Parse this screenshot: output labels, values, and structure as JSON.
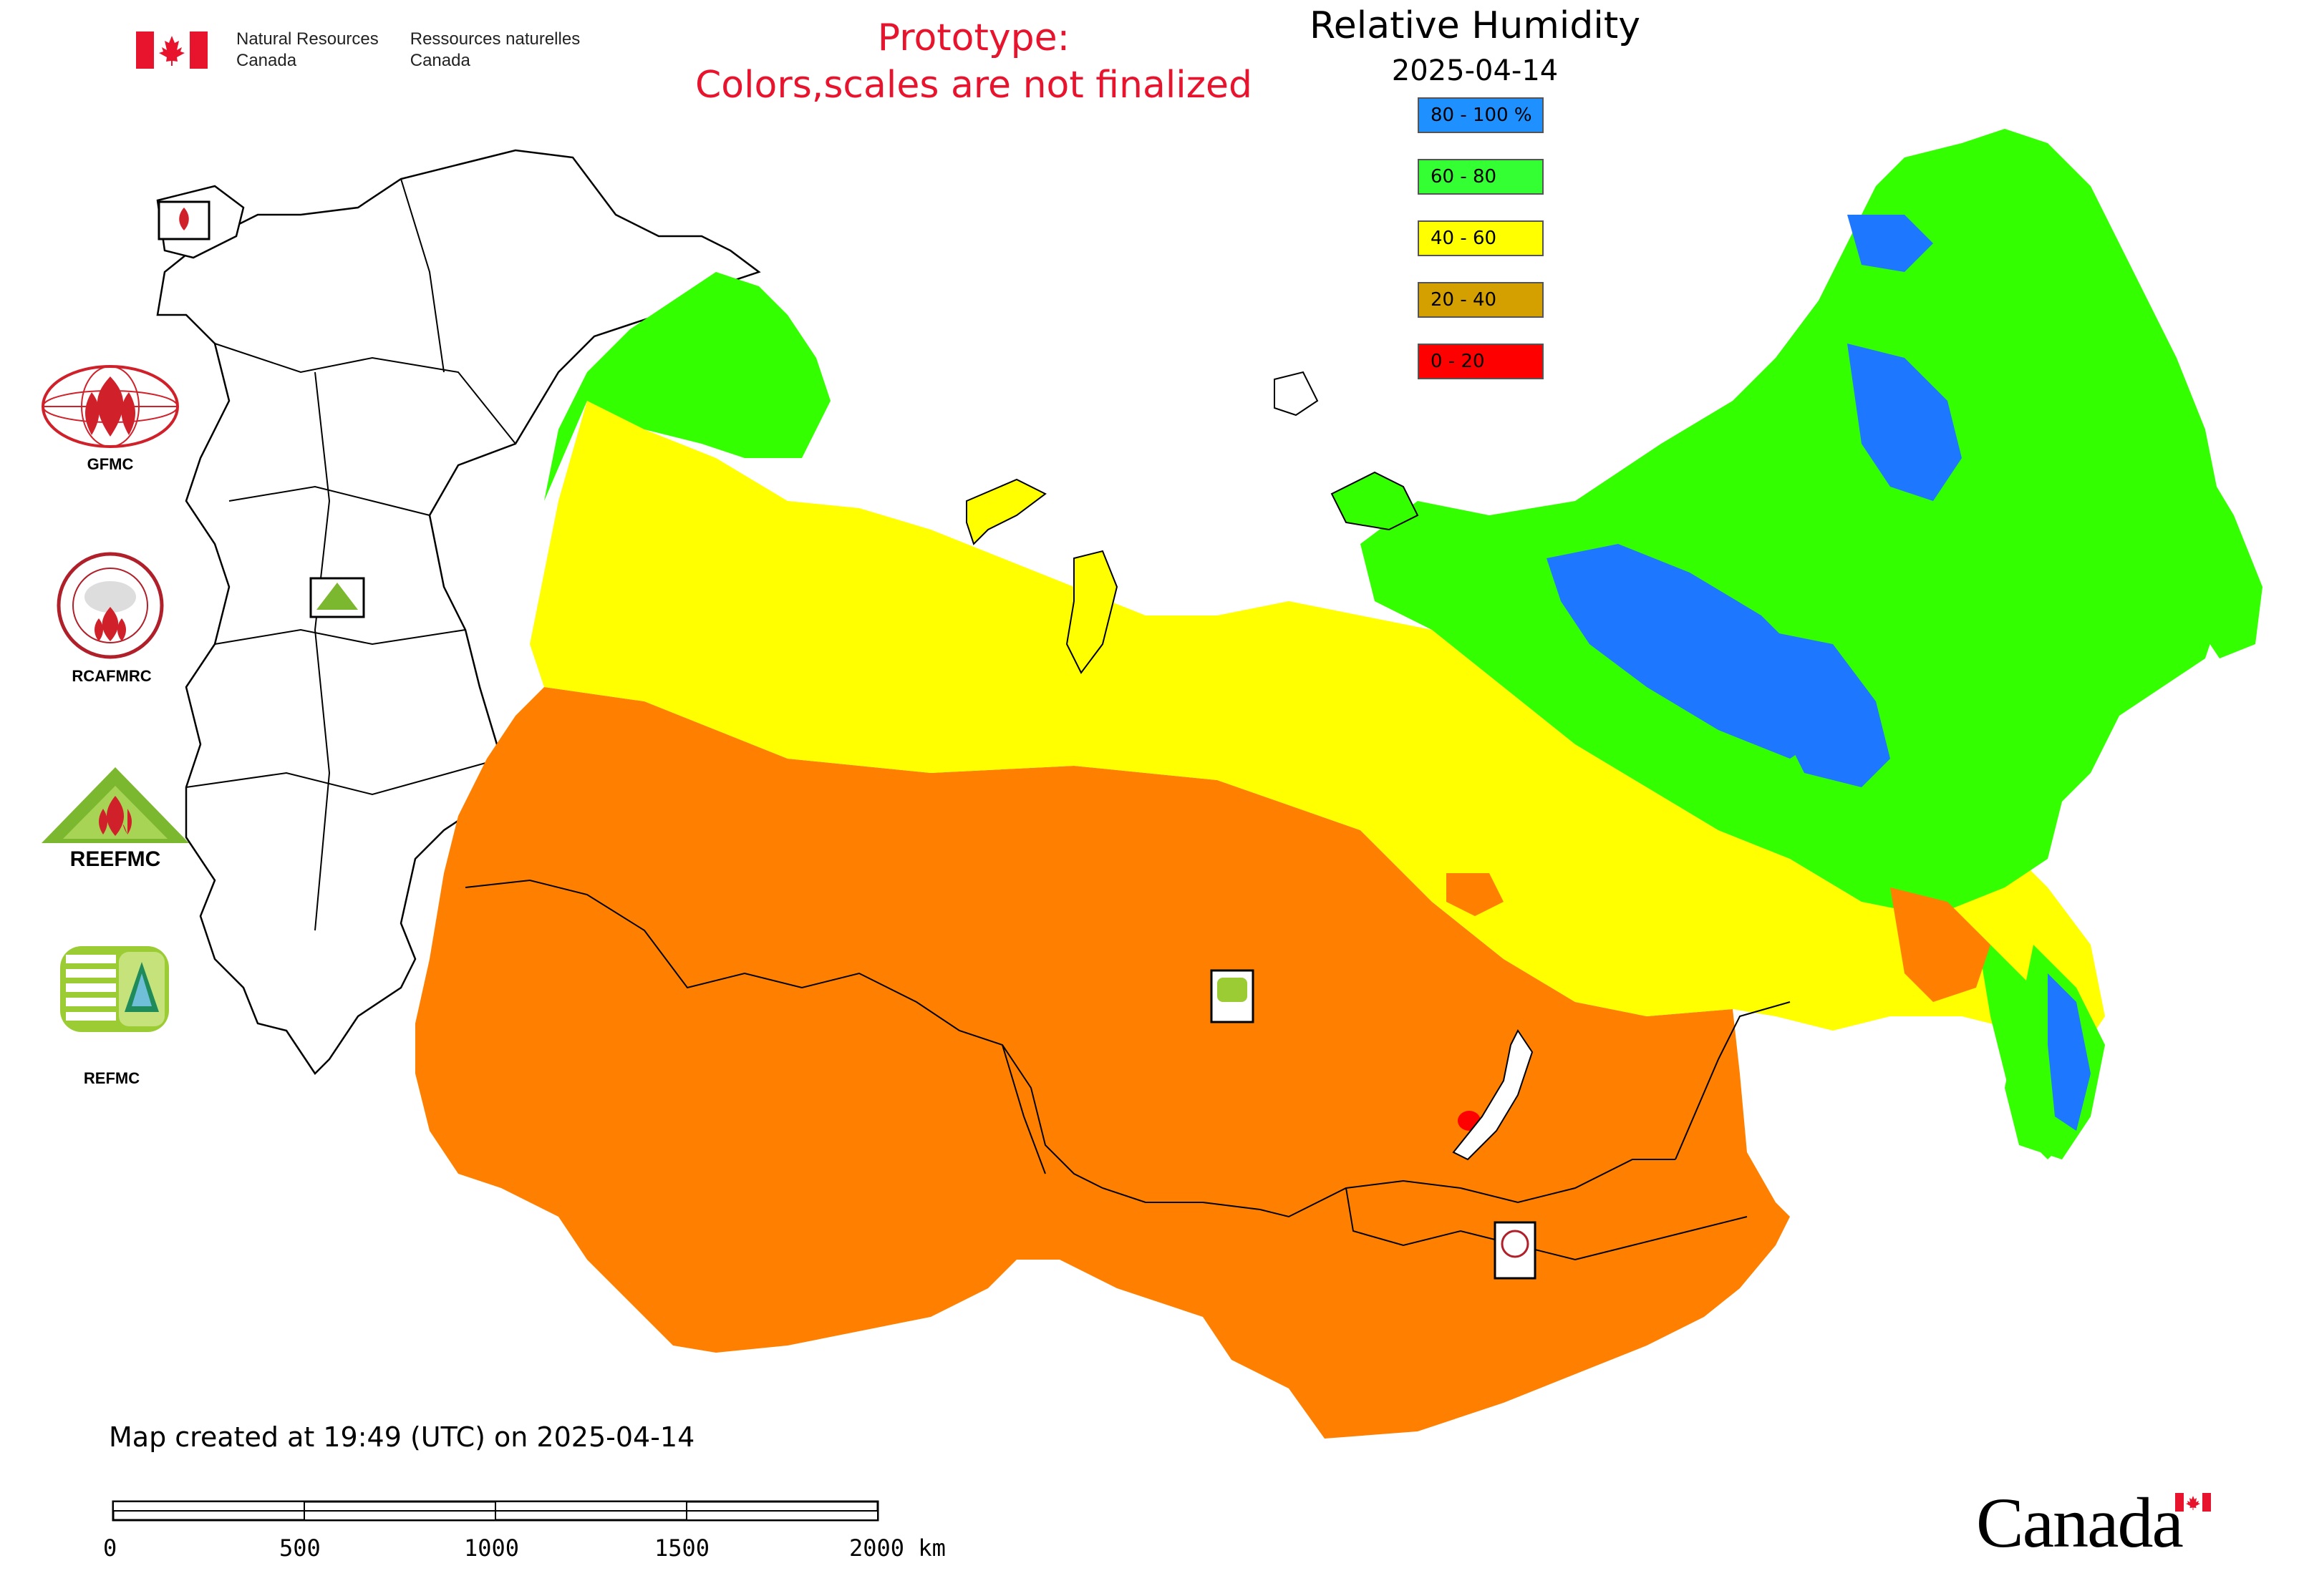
{
  "header": {
    "org_en_line1": "Natural Resources",
    "org_en_line2": "Canada",
    "org_fr_line1": "Ressources naturelles",
    "org_fr_line2": "Canada",
    "prototype_line1": "Prototype:",
    "prototype_line2": "Colors,scales are not finalized"
  },
  "legend": {
    "title": "Relative Humidity",
    "date": "2025-04-14",
    "items": [
      {
        "label": "80 - 100 %",
        "color": "#1e90ff"
      },
      {
        "label": "60 - 80",
        "color": "#33ff33"
      },
      {
        "label": "40 - 60",
        "color": "#ffff00"
      },
      {
        "label": "20 - 40",
        "color": "#d4a000"
      },
      {
        "label": "0 - 20",
        "color": "#ff0000"
      }
    ]
  },
  "logos": {
    "gfmc": "GFMC",
    "rcafmrc": "RCAFMRC",
    "reefmc_logo_text": "REEFMC",
    "refmc": "REFMC"
  },
  "footer": {
    "map_created": "Map created at 19:49 (UTC) on 2025-04-14",
    "scale_ticks": [
      "0",
      "500",
      "1000",
      "1500",
      "2000 km"
    ],
    "wordmark": "Canada"
  },
  "map_colors": {
    "orange_region": "#ff8000",
    "yellow_region": "#ffff00",
    "green_region": "#33ff00",
    "blue_region": "#1e78ff",
    "red_spot": "#ff0000"
  }
}
